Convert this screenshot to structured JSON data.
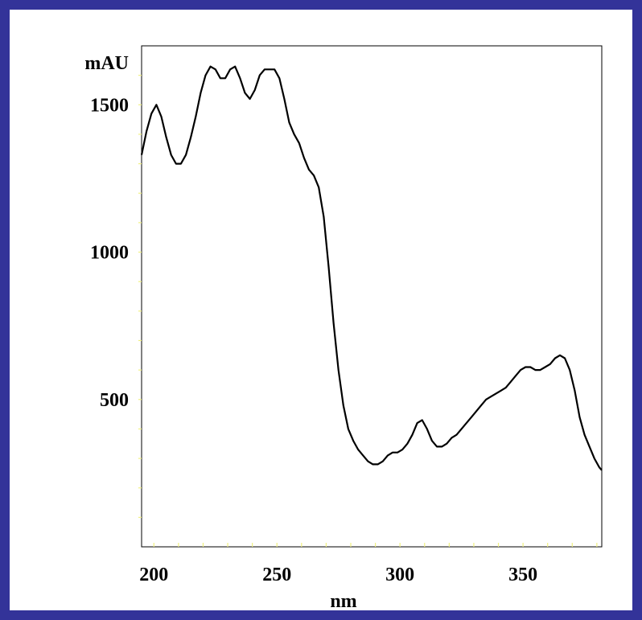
{
  "chart_data": {
    "type": "line",
    "title": "",
    "xlabel": "nm",
    "ylabel": "mAU",
    "xlim": [
      195,
      382
    ],
    "ylim": [
      0,
      1700
    ],
    "x_ticks": [
      200,
      250,
      300,
      350
    ],
    "y_ticks": [
      500,
      1000,
      1500
    ],
    "x_minor_step": 10,
    "y_minor_step": 100,
    "grid": false,
    "legend": "none",
    "colors": {
      "frame": "#333399",
      "line": "#000000",
      "minor_tick": "#f0f080"
    },
    "series": [
      {
        "x": [
          195,
          197,
          199,
          201,
          203,
          205,
          207,
          209,
          211,
          213,
          215,
          217,
          219,
          221,
          223,
          225,
          227,
          229,
          231,
          233,
          235,
          237,
          239,
          241,
          243,
          245,
          247,
          249,
          251,
          253,
          255,
          257,
          259,
          261,
          263,
          265,
          267,
          269,
          271,
          273,
          275,
          277,
          279,
          281,
          283,
          285,
          287,
          289,
          291,
          293,
          295,
          297,
          299,
          301,
          303,
          305,
          307,
          309,
          311,
          313,
          315,
          317,
          319,
          321,
          323,
          325,
          327,
          329,
          331,
          333,
          335,
          337,
          339,
          341,
          343,
          345,
          347,
          349,
          351,
          353,
          355,
          357,
          359,
          361,
          363,
          365,
          367,
          369,
          371,
          373,
          375,
          377,
          379,
          381,
          382
        ],
        "y": [
          1330,
          1410,
          1470,
          1500,
          1460,
          1390,
          1330,
          1300,
          1300,
          1330,
          1390,
          1460,
          1540,
          1600,
          1630,
          1620,
          1590,
          1590,
          1620,
          1630,
          1590,
          1540,
          1520,
          1550,
          1600,
          1620,
          1620,
          1620,
          1590,
          1520,
          1440,
          1400,
          1370,
          1320,
          1280,
          1260,
          1220,
          1120,
          950,
          760,
          600,
          480,
          400,
          360,
          330,
          310,
          290,
          280,
          280,
          290,
          310,
          320,
          320,
          330,
          350,
          380,
          420,
          430,
          400,
          360,
          340,
          340,
          350,
          370,
          380,
          400,
          420,
          440,
          460,
          480,
          500,
          510,
          520,
          530,
          540,
          560,
          580,
          600,
          610,
          610,
          600,
          600,
          610,
          620,
          640,
          650,
          640,
          600,
          530,
          440,
          380,
          340,
          300,
          270,
          260
        ]
      }
    ]
  }
}
